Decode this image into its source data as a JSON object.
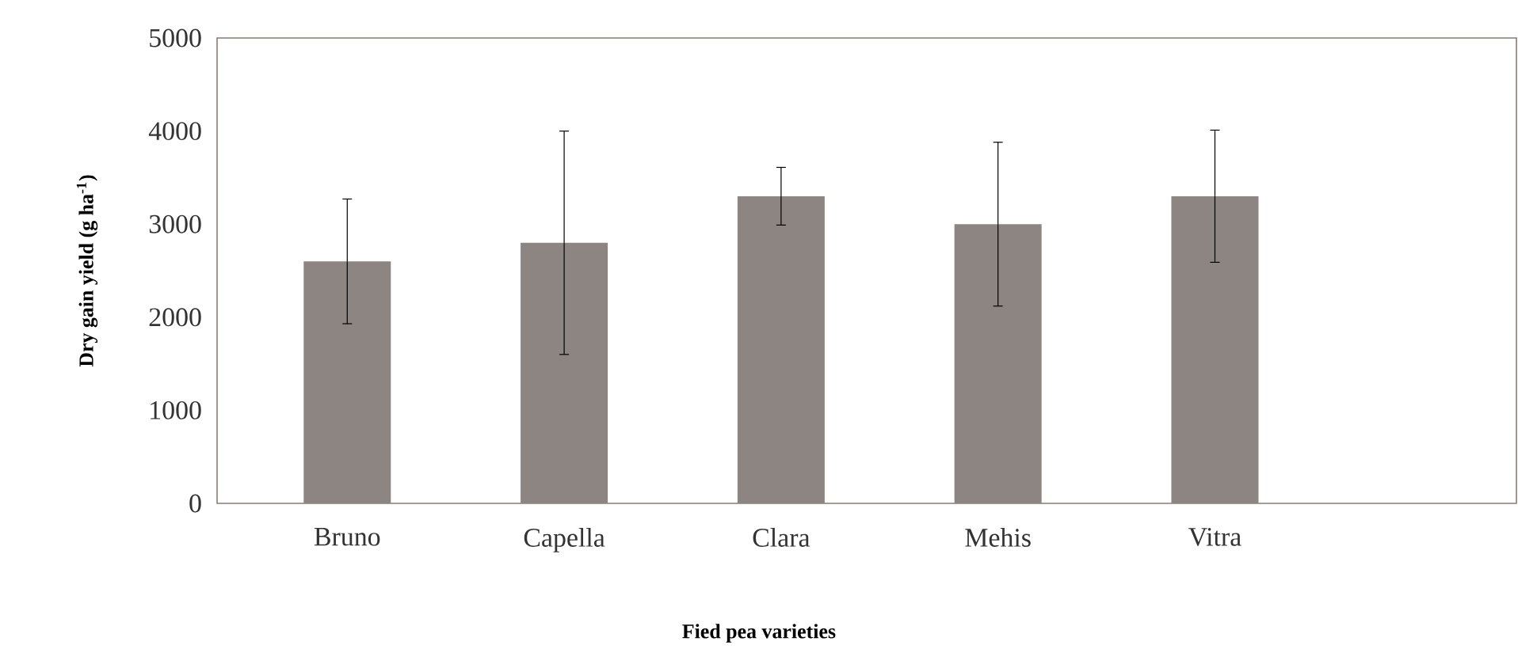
{
  "chart_data": {
    "type": "bar",
    "xlabel": "Fied pea varieties",
    "ylabel": "Dry gain yield (g ha$^{-1}$)",
    "categories": [
      "Bruno",
      "Capella",
      "Clara",
      "Mehis",
      "Vitra"
    ],
    "values": [
      2600,
      2800,
      3300,
      3000,
      3300
    ],
    "errors": [
      670,
      1200,
      310,
      880,
      710
    ],
    "color": "#8c8582",
    "ylim": [
      0,
      5000
    ],
    "yticks": [
      0,
      1000,
      2000,
      3000,
      4000,
      5000
    ],
    "grid": false
  }
}
